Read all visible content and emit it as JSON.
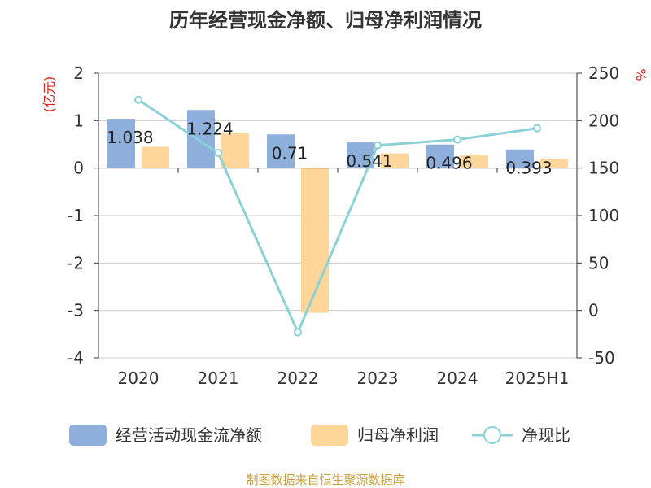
{
  "chart_data": {
    "type": "bar",
    "title": "历年经营现金净额、归母净利润情况",
    "categories": [
      "2020",
      "2021",
      "2022",
      "2023",
      "2024",
      "2025H1"
    ],
    "y_left": {
      "unit": "(亿元)",
      "ylim": [
        -4,
        2
      ],
      "ticks": [
        2,
        1,
        0,
        -1,
        -2,
        -3,
        -4
      ]
    },
    "y_right": {
      "unit": "%",
      "ylim": [
        -50,
        250
      ],
      "ticks": [
        250,
        200,
        150,
        100,
        50,
        0,
        -50
      ]
    },
    "series": [
      {
        "name": "经营活动现金流净额",
        "type": "bar",
        "axis": "left",
        "color": "#8eaedc",
        "values": [
          1.038,
          1.224,
          0.71,
          0.541,
          0.496,
          0.393
        ],
        "labels": [
          "1.038",
          "1.224",
          "0.71",
          "0.541",
          "0.496",
          "0.393"
        ]
      },
      {
        "name": "归母净利润",
        "type": "bar",
        "axis": "left",
        "color": "#ffd699",
        "values": [
          0.45,
          0.73,
          -3.05,
          0.31,
          0.27,
          0.2
        ]
      },
      {
        "name": "净现比",
        "type": "line",
        "axis": "right",
        "color": "#8ad1d8",
        "values": [
          222,
          166,
          -23,
          174,
          180,
          192
        ]
      }
    ],
    "grid": true,
    "legend_position": "bottom"
  },
  "footer": {
    "source": "制图数据来自恒生聚源数据库",
    "source_color": "#c8a040"
  }
}
